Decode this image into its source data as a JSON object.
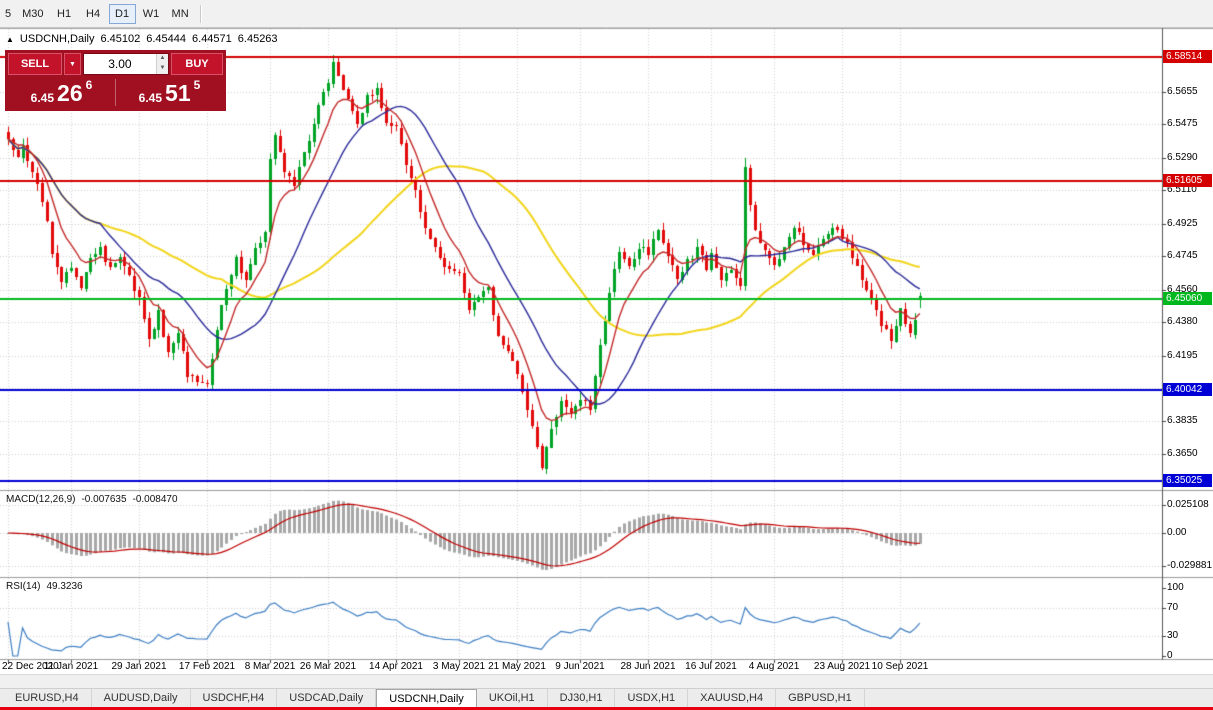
{
  "icons": {
    "collapse": "▲",
    "dropdown": "▼",
    "spin_up": "▲",
    "spin_down": "▼"
  },
  "toolbar": {
    "timeframes": [
      {
        "label": "5",
        "active": false
      },
      {
        "label": "M30",
        "active": false
      },
      {
        "label": "H1",
        "active": false
      },
      {
        "label": "H4",
        "active": false
      },
      {
        "label": "D1",
        "active": true
      },
      {
        "label": "W1",
        "active": false
      },
      {
        "label": "MN",
        "active": false
      }
    ]
  },
  "chart_header": {
    "title": "USDCNH,Daily",
    "open": "6.45102",
    "high": "6.45444",
    "low": "6.44571",
    "close": "6.45263"
  },
  "trade_panel": {
    "sell_label": "SELL",
    "buy_label": "BUY",
    "lot_value": "3.00",
    "sell_price": {
      "base": "6.45",
      "big": "26",
      "sup": "6"
    },
    "buy_price": {
      "base": "6.45",
      "big": "51",
      "sup": "5"
    },
    "panel_color": "#a01021",
    "button_color": "#c3132b"
  },
  "price_axis": {
    "ticks": [
      {
        "label": "6.5655",
        "value": 6.5655
      },
      {
        "label": "6.5475",
        "value": 6.5475
      },
      {
        "label": "6.5290",
        "value": 6.529
      },
      {
        "label": "6.5110",
        "value": 6.511
      },
      {
        "label": "6.4925",
        "value": 6.4925
      },
      {
        "label": "6.4745",
        "value": 6.4745
      },
      {
        "label": "6.4560",
        "value": 6.456
      },
      {
        "label": "6.4380",
        "value": 6.438
      },
      {
        "label": "6.4195",
        "value": 6.4195
      },
      {
        "label": "6.3835",
        "value": 6.3835
      },
      {
        "label": "6.3650",
        "value": 6.365
      }
    ],
    "hidden_grid_values": [
      6.4015
    ]
  },
  "levels": [
    {
      "label": "6.58514",
      "value": 6.58514,
      "color": "#d40000"
    },
    {
      "label": "6.51605",
      "value": 6.51605,
      "color": "#d40000"
    },
    {
      "label": "6.45060",
      "value": 6.4506,
      "color": "#00b81e"
    },
    {
      "label": "6.40042",
      "value": 6.40042,
      "color": "#0000d6"
    },
    {
      "label": "6.35025",
      "value": 6.35025,
      "color": "#0000d6"
    }
  ],
  "indicators": {
    "macd": {
      "name": "MACD(12,26,9)",
      "value": "-0.007635",
      "signal_value": "-0.008470",
      "axis": [
        {
          "label": "0.025108",
          "value": 0.025108
        },
        {
          "label": "0.00",
          "value": 0
        },
        {
          "label": "-0.029881",
          "value": -0.029881
        }
      ],
      "histogram_color": "#a8a8a8",
      "signal_color": "#c00000"
    },
    "rsi": {
      "name": "RSI(14)",
      "value": "49.3236",
      "axis": [
        {
          "label": "100",
          "value": 100
        },
        {
          "label": "70",
          "value": 70
        },
        {
          "label": "30",
          "value": 30
        },
        {
          "label": "0",
          "value": 0
        }
      ],
      "level_lines": [
        70,
        30
      ],
      "line_color": "#3e7fc4"
    }
  },
  "x_axis": {
    "dates": [
      {
        "label": "22 Dec 2020",
        "index": 0
      },
      {
        "label": "11 Jan 2021",
        "index": 13
      },
      {
        "label": "29 Jan 2021",
        "index": 27
      },
      {
        "label": "17 Feb 2021",
        "index": 41
      },
      {
        "label": "8 Mar 2021",
        "index": 54
      },
      {
        "label": "26 Mar 2021",
        "index": 66
      },
      {
        "label": "14 Apr 2021",
        "index": 80
      },
      {
        "label": "3 May 2021",
        "index": 93
      },
      {
        "label": "21 May 2021",
        "index": 105
      },
      {
        "label": "9 Jun 2021",
        "index": 118
      },
      {
        "label": "28 Jun 2021",
        "index": 132
      },
      {
        "label": "16 Jul 2021",
        "index": 145
      },
      {
        "label": "4 Aug 2021",
        "index": 158
      },
      {
        "label": "23 Aug 2021",
        "index": 172
      },
      {
        "label": "10 Sep 2021",
        "index": 184
      }
    ]
  },
  "tabs": [
    {
      "label": "EURUSD,H4",
      "active": false
    },
    {
      "label": "AUDUSD,Daily",
      "active": false
    },
    {
      "label": "USDCHF,H4",
      "active": false
    },
    {
      "label": "USDCAD,Daily",
      "active": false
    },
    {
      "label": "USDCNH,Daily",
      "active": true
    },
    {
      "label": "UKOil,H1",
      "active": false
    },
    {
      "label": "DJ30,H1",
      "active": false
    },
    {
      "label": "USDX,H1",
      "active": false
    },
    {
      "label": "XAUUSD,H4",
      "active": false
    },
    {
      "label": "GBPUSD,H1",
      "active": false
    }
  ],
  "chart_data": {
    "type": "candlestick",
    "symbol": "USDCNH",
    "timeframe": "Daily",
    "last_ohlc": {
      "open": 6.45102,
      "high": 6.45444,
      "low": 6.44571,
      "close": 6.45263
    },
    "candle_count": 189,
    "up_color": "#00a326",
    "down_color": "#e20a0a",
    "close_anchors": [
      [
        0,
        6.541
      ],
      [
        2,
        6.528
      ],
      [
        3,
        6.536
      ],
      [
        5,
        6.52
      ],
      [
        7,
        6.506
      ],
      [
        9,
        6.478
      ],
      [
        11,
        6.46
      ],
      [
        13,
        6.468
      ],
      [
        15,
        6.458
      ],
      [
        17,
        6.472
      ],
      [
        19,
        6.478
      ],
      [
        21,
        6.468
      ],
      [
        23,
        6.475
      ],
      [
        25,
        6.462
      ],
      [
        27,
        6.452
      ],
      [
        29,
        6.428
      ],
      [
        31,
        6.443
      ],
      [
        33,
        6.42
      ],
      [
        35,
        6.432
      ],
      [
        37,
        6.41
      ],
      [
        39,
        6.406
      ],
      [
        41,
        6.402
      ],
      [
        43,
        6.435
      ],
      [
        45,
        6.458
      ],
      [
        47,
        6.472
      ],
      [
        49,
        6.463
      ],
      [
        51,
        6.478
      ],
      [
        53,
        6.49
      ],
      [
        54,
        6.528
      ],
      [
        55,
        6.542
      ],
      [
        57,
        6.522
      ],
      [
        59,
        6.512
      ],
      [
        61,
        6.532
      ],
      [
        63,
        6.548
      ],
      [
        65,
        6.565
      ],
      [
        66,
        6.572
      ],
      [
        67,
        6.583
      ],
      [
        68,
        6.575
      ],
      [
        70,
        6.56
      ],
      [
        72,
        6.548
      ],
      [
        74,
        6.562
      ],
      [
        76,
        6.567
      ],
      [
        78,
        6.55
      ],
      [
        80,
        6.545
      ],
      [
        82,
        6.525
      ],
      [
        84,
        6.51
      ],
      [
        86,
        6.49
      ],
      [
        88,
        6.478
      ],
      [
        90,
        6.47
      ],
      [
        93,
        6.465
      ],
      [
        95,
        6.443
      ],
      [
        97,
        6.452
      ],
      [
        99,
        6.456
      ],
      [
        101,
        6.43
      ],
      [
        103,
        6.422
      ],
      [
        105,
        6.41
      ],
      [
        107,
        6.39
      ],
      [
        109,
        6.368
      ],
      [
        110,
        6.358
      ],
      [
        112,
        6.378
      ],
      [
        114,
        6.395
      ],
      [
        116,
        6.388
      ],
      [
        118,
        6.397
      ],
      [
        120,
        6.39
      ],
      [
        122,
        6.425
      ],
      [
        124,
        6.455
      ],
      [
        126,
        6.477
      ],
      [
        128,
        6.468
      ],
      [
        130,
        6.48
      ],
      [
        132,
        6.477
      ],
      [
        134,
        6.49
      ],
      [
        136,
        6.475
      ],
      [
        138,
        6.462
      ],
      [
        140,
        6.472
      ],
      [
        142,
        6.478
      ],
      [
        144,
        6.468
      ],
      [
        145,
        6.475
      ],
      [
        147,
        6.462
      ],
      [
        149,
        6.468
      ],
      [
        151,
        6.458
      ],
      [
        152,
        6.522
      ],
      [
        154,
        6.488
      ],
      [
        156,
        6.478
      ],
      [
        158,
        6.47
      ],
      [
        160,
        6.478
      ],
      [
        162,
        6.49
      ],
      [
        164,
        6.482
      ],
      [
        166,
        6.477
      ],
      [
        168,
        6.485
      ],
      [
        170,
        6.492
      ],
      [
        172,
        6.486
      ],
      [
        174,
        6.475
      ],
      [
        176,
        6.463
      ],
      [
        178,
        6.45
      ],
      [
        180,
        6.438
      ],
      [
        182,
        6.428
      ],
      [
        184,
        6.445
      ],
      [
        186,
        6.43
      ],
      [
        188,
        6.45263
      ]
    ],
    "wick_overrides": {
      "67": {
        "high": 6.586
      },
      "110": {
        "low": 6.356
      },
      "152": {
        "high": 6.529
      }
    },
    "moving_averages": [
      {
        "period": 45,
        "type": "sma",
        "color": "#f2d51b",
        "width": 2
      },
      {
        "period": 20,
        "type": "sma",
        "color": "#2b2b9a",
        "width": 1.4
      },
      {
        "period": 8,
        "type": "ema",
        "color": "#c42b2b",
        "width": 1.4
      }
    ],
    "y_axis_range": {
      "top": 6.601,
      "bottom": 6.345
    },
    "macd_params": [
      12,
      26,
      9
    ],
    "rsi_period": 14,
    "grid": true
  }
}
